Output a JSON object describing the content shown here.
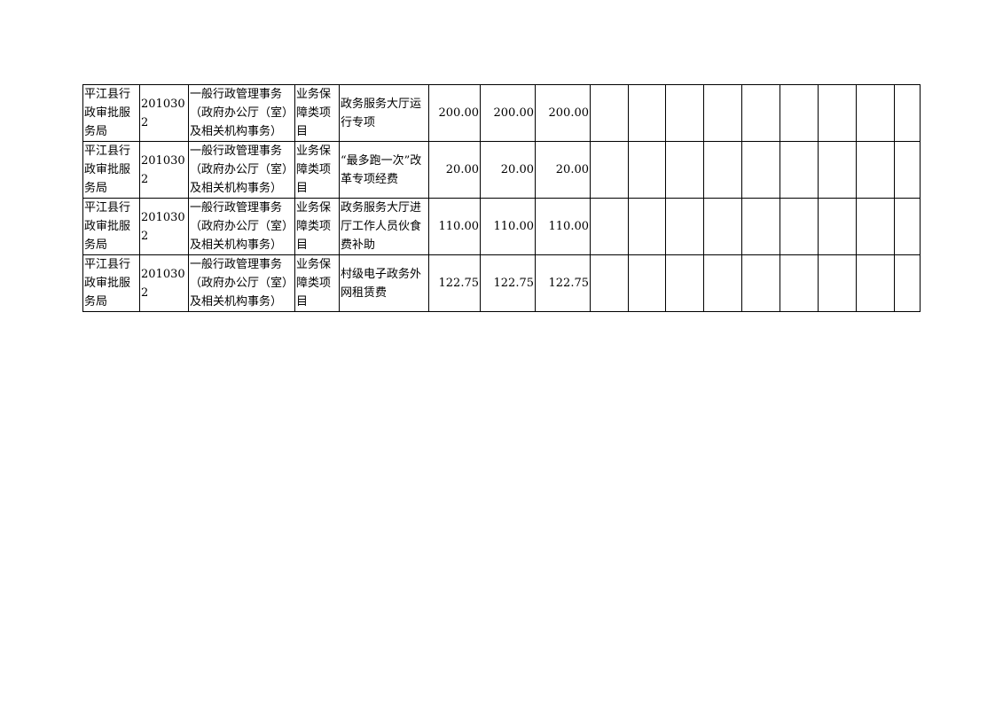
{
  "table": {
    "rows": [
      {
        "unit": "平江县行政审批服务局",
        "code": "2010302",
        "category": "一般行政管理事务（政府办公厅（室）及相关机构事务）",
        "type": "业务保障类项目",
        "project": "政务服务大厅运行专项",
        "v1": "200.00",
        "v2": "200.00",
        "v3": "200.00"
      },
      {
        "unit": "平江县行政审批服务局",
        "code": "2010302",
        "category": "一般行政管理事务（政府办公厅（室）及相关机构事务）",
        "type": "业务保障类项目",
        "project": "“最多跑一次”改革专项经费",
        "v1": "20.00",
        "v2": "20.00",
        "v3": "20.00"
      },
      {
        "unit": "平江县行政审批服务局",
        "code": "2010302",
        "category": "一般行政管理事务（政府办公厅（室）及相关机构事务）",
        "type": "业务保障类项目",
        "project": "政务服务大厅进厅工作人员伙食费补助",
        "v1": "110.00",
        "v2": "110.00",
        "v3": "110.00"
      },
      {
        "unit": "平江县行政审批服务局",
        "code": "2010302",
        "category": "一般行政管理事务（政府办公厅（室）及相关机构事务）",
        "type": "业务保障类项目",
        "project": "村级电子政务外网租赁费",
        "v1": "122.75",
        "v2": "122.75",
        "v3": "122.75"
      }
    ]
  }
}
